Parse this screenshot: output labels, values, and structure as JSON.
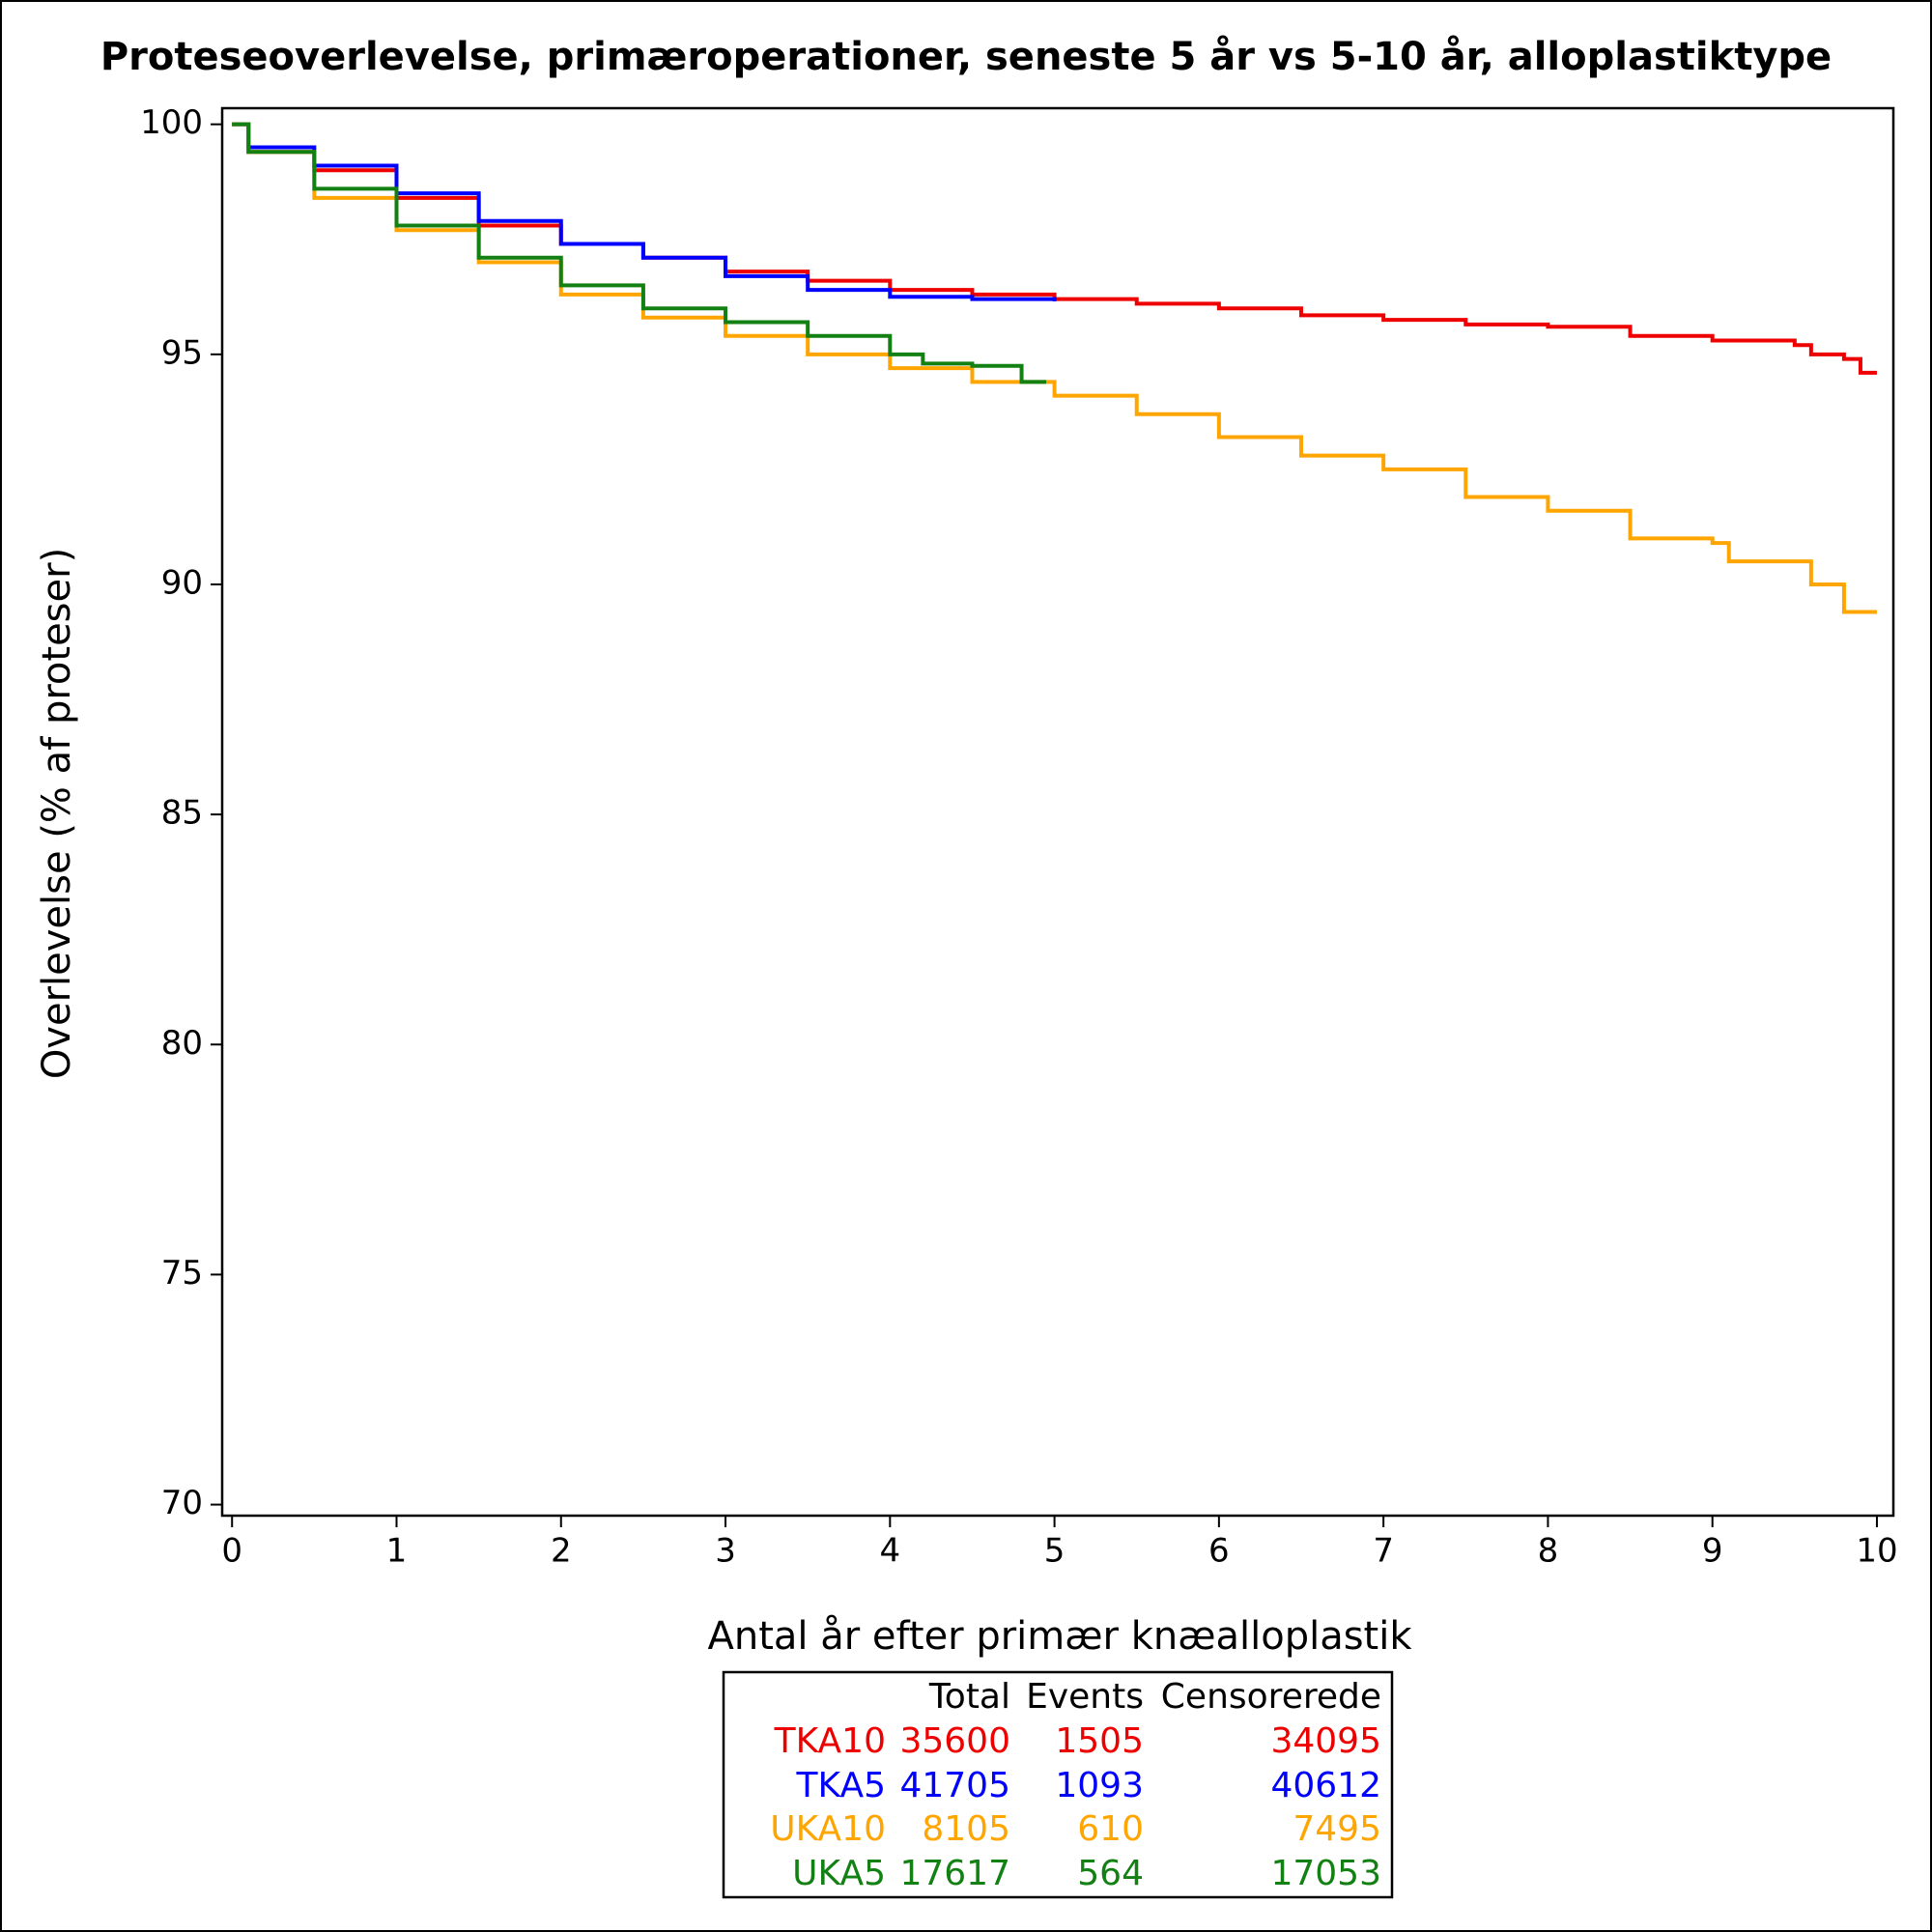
{
  "chart_data": {
    "type": "line",
    "step": "after",
    "title": "Proteseoverlevelse, primæroperationer, seneste 5 år vs 5-10 år, alloplastiktype",
    "xlabel": "Antal år efter primær knæalloplastik",
    "ylabel": "Overlevelse (% af proteser)",
    "xlim": [
      -0.06,
      10.1
    ],
    "ylim": [
      69.76,
      100.35
    ],
    "xticks": [
      0,
      1,
      2,
      3,
      4,
      5,
      6,
      7,
      8,
      9,
      10
    ],
    "yticks": [
      70,
      75,
      80,
      85,
      90,
      95,
      100
    ],
    "series": [
      {
        "name": "TKA10",
        "color": "#ee0000",
        "x": [
          0,
          0.1,
          0.5,
          1,
          1.5,
          2,
          2.5,
          3,
          3.5,
          4,
          4.5,
          5,
          5.5,
          6,
          6.5,
          7,
          7.5,
          8,
          8.5,
          9,
          9.5,
          9.6,
          9.8,
          9.9,
          10
        ],
        "values": [
          100,
          99.4,
          99.0,
          98.4,
          97.8,
          97.4,
          97.1,
          96.8,
          96.6,
          96.4,
          96.3,
          96.2,
          96.1,
          96.0,
          95.85,
          95.75,
          95.65,
          95.6,
          95.4,
          95.3,
          95.2,
          95.0,
          94.9,
          94.6,
          94.6
        ]
      },
      {
        "name": "TKA5",
        "color": "#0000ff",
        "x": [
          0,
          0.1,
          0.5,
          1,
          1.5,
          2,
          2.5,
          3,
          3.5,
          4,
          4.5,
          5
        ],
        "values": [
          100,
          99.5,
          99.1,
          98.5,
          97.9,
          97.4,
          97.1,
          96.7,
          96.4,
          96.25,
          96.2,
          96.15
        ]
      },
      {
        "name": "UKA10",
        "color": "#ffa500",
        "x": [
          0,
          0.1,
          0.5,
          1,
          1.5,
          2,
          2.5,
          3,
          3.5,
          4,
          4.5,
          5,
          5.5,
          6,
          6.5,
          7,
          7.5,
          8,
          8.5,
          9,
          9.1,
          9.6,
          9.8,
          10
        ],
        "values": [
          100,
          99.4,
          98.4,
          97.7,
          97.0,
          96.3,
          95.8,
          95.4,
          95.0,
          94.7,
          94.4,
          94.1,
          93.7,
          93.2,
          92.8,
          92.5,
          91.9,
          91.6,
          91.0,
          90.9,
          90.5,
          90.0,
          89.4,
          89.4
        ]
      },
      {
        "name": "UKA5",
        "color": "#138013",
        "x": [
          0,
          0.1,
          0.5,
          1,
          1.5,
          2,
          2.5,
          3,
          3.5,
          4,
          4.2,
          4.5,
          4.8,
          4.95
        ],
        "values": [
          100,
          99.4,
          98.6,
          97.8,
          97.1,
          96.5,
          96.0,
          95.7,
          95.4,
          95.0,
          94.8,
          94.75,
          94.4,
          94.4
        ]
      }
    ],
    "summary": {
      "columns": [
        "Total",
        "Events",
        "Censorerede"
      ],
      "rows": [
        [
          35600,
          1505,
          34095
        ],
        [
          41705,
          1093,
          40612
        ],
        [
          8105,
          610,
          7495
        ],
        [
          17617,
          564,
          17053
        ]
      ]
    }
  }
}
